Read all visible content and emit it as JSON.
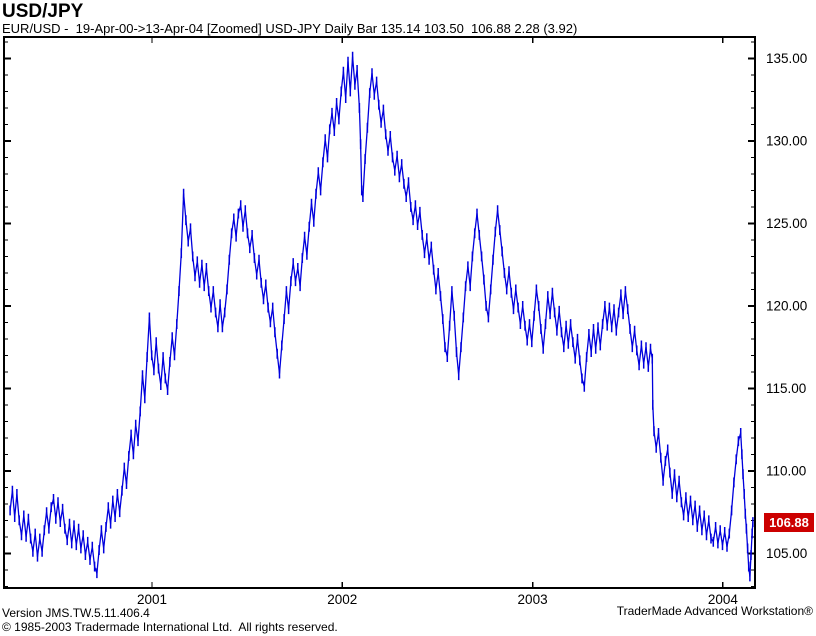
{
  "header": {
    "title": "USD/JPY",
    "subtitle": "EUR/USD -  19-Apr-00->13-Apr-04 [Zoomed] USD-JPY Daily Bar 135.14 103.50  106.88 2.28 (3.92)"
  },
  "price_tag": {
    "value": "106.88",
    "bg": "#CC0000",
    "fg": "#FFFFFF"
  },
  "footer": {
    "version_line": "Version JMS.TW.5.11.406.4",
    "copyright_line": "© 1985-2003 Tradermade International Ltd.  All rights reserved.",
    "brand": "TraderMade Advanced Workstation®"
  },
  "chart_data": {
    "type": "line",
    "title": "USD-JPY Daily Bar",
    "instrument": "USD/JPY",
    "date_range": "19-Apr-00->13-Apr-04",
    "period_high": 135.14,
    "period_low": 103.5,
    "last": 106.88,
    "change": 2.28,
    "change_pct": 3.92,
    "line_color": "#0000DD",
    "bar_half_range": 0.3,
    "grid": false,
    "x_range": [
      2000.222,
      2004.169
    ],
    "y_range": [
      102.9,
      136.3
    ],
    "x_ticks": [
      2001,
      2002,
      2003,
      2004
    ],
    "x_tick_labels": [
      "2001",
      "2002",
      "2003",
      "2004"
    ],
    "y_ticks": [
      105,
      110,
      115,
      120,
      125,
      130,
      135
    ],
    "y_tick_labels": [
      "105.00",
      "110.00",
      "115.00",
      "120.00",
      "125.00",
      "130.00",
      "135.00"
    ],
    "points": [
      [
        2000.254,
        107.6
      ],
      [
        2000.266,
        108.8
      ],
      [
        2000.278,
        107.2
      ],
      [
        2000.29,
        108.6
      ],
      [
        2000.302,
        107.0
      ],
      [
        2000.314,
        106.1
      ],
      [
        2000.326,
        107.3
      ],
      [
        2000.338,
        106.0
      ],
      [
        2000.35,
        107.1
      ],
      [
        2000.362,
        105.9
      ],
      [
        2000.374,
        105.1
      ],
      [
        2000.386,
        106.2
      ],
      [
        2000.398,
        104.8
      ],
      [
        2000.41,
        105.9
      ],
      [
        2000.422,
        105.1
      ],
      [
        2000.434,
        106.4
      ],
      [
        2000.446,
        107.5
      ],
      [
        2000.458,
        106.5
      ],
      [
        2000.47,
        107.8
      ],
      [
        2000.482,
        108.3
      ],
      [
        2000.494,
        107.1
      ],
      [
        2000.506,
        108.1
      ],
      [
        2000.518,
        106.9
      ],
      [
        2000.53,
        107.7
      ],
      [
        2000.542,
        106.5
      ],
      [
        2000.554,
        105.8
      ],
      [
        2000.566,
        106.8
      ],
      [
        2000.578,
        105.6
      ],
      [
        2000.59,
        106.7
      ],
      [
        2000.602,
        105.5
      ],
      [
        2000.614,
        106.5
      ],
      [
        2000.626,
        105.3
      ],
      [
        2000.638,
        106.1
      ],
      [
        2000.65,
        104.9
      ],
      [
        2000.662,
        105.7
      ],
      [
        2000.674,
        104.6
      ],
      [
        2000.686,
        105.4
      ],
      [
        2000.698,
        104.2
      ],
      [
        2000.71,
        103.8
      ],
      [
        2000.722,
        105.2
      ],
      [
        2000.734,
        106.4
      ],
      [
        2000.746,
        105.3
      ],
      [
        2000.758,
        106.6
      ],
      [
        2000.77,
        107.8
      ],
      [
        2000.782,
        106.8
      ],
      [
        2000.794,
        108.2
      ],
      [
        2000.806,
        107.2
      ],
      [
        2000.818,
        108.6
      ],
      [
        2000.83,
        107.5
      ],
      [
        2000.842,
        108.8
      ],
      [
        2000.854,
        110.2
      ],
      [
        2000.866,
        109.2
      ],
      [
        2000.878,
        110.9
      ],
      [
        2000.89,
        112.2
      ],
      [
        2000.902,
        111.0
      ],
      [
        2000.914,
        112.8
      ],
      [
        2000.926,
        111.8
      ],
      [
        2000.938,
        113.6
      ],
      [
        2000.95,
        115.8
      ],
      [
        2000.962,
        114.4
      ],
      [
        2000.974,
        116.9
      ],
      [
        2000.986,
        119.3
      ],
      [
        2000.998,
        117.0
      ],
      [
        2001.01,
        116.1
      ],
      [
        2001.022,
        117.8
      ],
      [
        2001.034,
        116.2
      ],
      [
        2001.046,
        115.2
      ],
      [
        2001.058,
        116.9
      ],
      [
        2001.07,
        115.6
      ],
      [
        2001.082,
        114.9
      ],
      [
        2001.094,
        116.6
      ],
      [
        2001.106,
        118.1
      ],
      [
        2001.118,
        117.0
      ],
      [
        2001.13,
        118.9
      ],
      [
        2001.142,
        120.9
      ],
      [
        2001.154,
        123.2
      ],
      [
        2001.166,
        126.8
      ],
      [
        2001.178,
        125.2
      ],
      [
        2001.19,
        123.9
      ],
      [
        2001.202,
        124.7
      ],
      [
        2001.214,
        123.0
      ],
      [
        2001.226,
        121.8
      ],
      [
        2001.238,
        122.7
      ],
      [
        2001.25,
        121.4
      ],
      [
        2001.262,
        122.5
      ],
      [
        2001.274,
        121.2
      ],
      [
        2001.286,
        122.3
      ],
      [
        2001.298,
        120.9
      ],
      [
        2001.31,
        119.9
      ],
      [
        2001.322,
        120.9
      ],
      [
        2001.334,
        119.6
      ],
      [
        2001.346,
        118.7
      ],
      [
        2001.358,
        120.1
      ],
      [
        2001.37,
        118.7
      ],
      [
        2001.382,
        119.6
      ],
      [
        2001.394,
        121.0
      ],
      [
        2001.406,
        122.8
      ],
      [
        2001.418,
        124.4
      ],
      [
        2001.43,
        125.3
      ],
      [
        2001.442,
        124.2
      ],
      [
        2001.454,
        125.6
      ],
      [
        2001.466,
        126.1
      ],
      [
        2001.478,
        124.8
      ],
      [
        2001.49,
        125.8
      ],
      [
        2001.502,
        124.4
      ],
      [
        2001.514,
        123.5
      ],
      [
        2001.526,
        124.3
      ],
      [
        2001.538,
        122.9
      ],
      [
        2001.55,
        121.9
      ],
      [
        2001.562,
        122.8
      ],
      [
        2001.574,
        121.4
      ],
      [
        2001.586,
        120.4
      ],
      [
        2001.598,
        121.3
      ],
      [
        2001.61,
        119.9
      ],
      [
        2001.622,
        119.0
      ],
      [
        2001.634,
        119.9
      ],
      [
        2001.646,
        118.4
      ],
      [
        2001.658,
        117.1
      ],
      [
        2001.67,
        115.9
      ],
      [
        2001.682,
        117.6
      ],
      [
        2001.694,
        119.2
      ],
      [
        2001.706,
        120.9
      ],
      [
        2001.718,
        119.8
      ],
      [
        2001.73,
        121.5
      ],
      [
        2001.742,
        122.6
      ],
      [
        2001.754,
        121.5
      ],
      [
        2001.766,
        122.3
      ],
      [
        2001.778,
        121.2
      ],
      [
        2001.79,
        122.9
      ],
      [
        2001.802,
        124.2
      ],
      [
        2001.814,
        123.1
      ],
      [
        2001.826,
        124.8
      ],
      [
        2001.838,
        126.2
      ],
      [
        2001.85,
        125.1
      ],
      [
        2001.862,
        126.8
      ],
      [
        2001.874,
        128.1
      ],
      [
        2001.886,
        127.0
      ],
      [
        2001.898,
        128.7
      ],
      [
        2001.91,
        130.1
      ],
      [
        2001.922,
        129.0
      ],
      [
        2001.934,
        130.7
      ],
      [
        2001.946,
        131.7
      ],
      [
        2001.958,
        130.6
      ],
      [
        2001.97,
        132.3
      ],
      [
        2001.982,
        131.3
      ],
      [
        2001.994,
        133.0
      ],
      [
        2002.006,
        134.2
      ],
      [
        2002.018,
        132.6
      ],
      [
        2002.03,
        134.8
      ],
      [
        2002.042,
        133.0
      ],
      [
        2002.054,
        135.1
      ],
      [
        2002.066,
        133.4
      ],
      [
        2002.078,
        134.3
      ],
      [
        2002.09,
        132.0
      ],
      [
        2002.096,
        129.8
      ],
      [
        2002.102,
        127.0
      ],
      [
        2002.108,
        126.6
      ],
      [
        2002.12,
        128.9
      ],
      [
        2002.132,
        130.8
      ],
      [
        2002.144,
        132.9
      ],
      [
        2002.156,
        134.1
      ],
      [
        2002.168,
        132.8
      ],
      [
        2002.18,
        133.6
      ],
      [
        2002.192,
        132.2
      ],
      [
        2002.204,
        131.1
      ],
      [
        2002.216,
        131.9
      ],
      [
        2002.228,
        130.4
      ],
      [
        2002.24,
        129.4
      ],
      [
        2002.252,
        130.3
      ],
      [
        2002.264,
        129.0
      ],
      [
        2002.276,
        128.2
      ],
      [
        2002.288,
        129.1
      ],
      [
        2002.3,
        127.8
      ],
      [
        2002.312,
        128.6
      ],
      [
        2002.324,
        127.4
      ],
      [
        2002.336,
        126.6
      ],
      [
        2002.348,
        127.5
      ],
      [
        2002.36,
        126.0
      ],
      [
        2002.372,
        125.2
      ],
      [
        2002.384,
        126.1
      ],
      [
        2002.396,
        124.9
      ],
      [
        2002.408,
        125.7
      ],
      [
        2002.42,
        124.3
      ],
      [
        2002.432,
        123.2
      ],
      [
        2002.444,
        124.1
      ],
      [
        2002.456,
        122.8
      ],
      [
        2002.468,
        123.6
      ],
      [
        2002.48,
        122.2
      ],
      [
        2002.492,
        121.0
      ],
      [
        2002.504,
        122.0
      ],
      [
        2002.516,
        120.6
      ],
      [
        2002.528,
        119.2
      ],
      [
        2002.54,
        117.5
      ],
      [
        2002.552,
        116.9
      ],
      [
        2002.564,
        118.8
      ],
      [
        2002.576,
        120.9
      ],
      [
        2002.588,
        119.4
      ],
      [
        2002.6,
        117.2
      ],
      [
        2002.612,
        115.8
      ],
      [
        2002.624,
        117.5
      ],
      [
        2002.636,
        119.3
      ],
      [
        2002.648,
        121.2
      ],
      [
        2002.66,
        122.4
      ],
      [
        2002.672,
        121.2
      ],
      [
        2002.684,
        123.0
      ],
      [
        2002.696,
        124.4
      ],
      [
        2002.708,
        125.6
      ],
      [
        2002.72,
        124.3
      ],
      [
        2002.732,
        123.0
      ],
      [
        2002.744,
        121.6
      ],
      [
        2002.756,
        120.0
      ],
      [
        2002.768,
        119.3
      ],
      [
        2002.78,
        121.0
      ],
      [
        2002.792,
        122.8
      ],
      [
        2002.804,
        124.5
      ],
      [
        2002.816,
        125.8
      ],
      [
        2002.828,
        124.6
      ],
      [
        2002.84,
        123.3
      ],
      [
        2002.852,
        122.0
      ],
      [
        2002.864,
        121.0
      ],
      [
        2002.876,
        122.1
      ],
      [
        2002.888,
        120.8
      ],
      [
        2002.9,
        119.8
      ],
      [
        2002.912,
        121.0
      ],
      [
        2002.924,
        119.9
      ],
      [
        2002.936,
        118.9
      ],
      [
        2002.948,
        120.0
      ],
      [
        2002.96,
        118.8
      ],
      [
        2002.972,
        117.9
      ],
      [
        2002.984,
        118.9
      ],
      [
        2002.996,
        117.8
      ],
      [
        2003.008,
        119.4
      ],
      [
        2003.02,
        121.0
      ],
      [
        2003.032,
        120.0
      ],
      [
        2003.044,
        118.6
      ],
      [
        2003.056,
        117.4
      ],
      [
        2003.068,
        118.9
      ],
      [
        2003.08,
        120.6
      ],
      [
        2003.092,
        119.5
      ],
      [
        2003.104,
        120.8
      ],
      [
        2003.116,
        119.6
      ],
      [
        2003.128,
        118.5
      ],
      [
        2003.14,
        119.7
      ],
      [
        2003.152,
        118.4
      ],
      [
        2003.164,
        117.5
      ],
      [
        2003.176,
        118.8
      ],
      [
        2003.188,
        117.7
      ],
      [
        2003.2,
        118.9
      ],
      [
        2003.212,
        117.8
      ],
      [
        2003.224,
        116.8
      ],
      [
        2003.236,
        118.0
      ],
      [
        2003.248,
        116.7
      ],
      [
        2003.26,
        115.6
      ],
      [
        2003.272,
        115.1
      ],
      [
        2003.284,
        116.9
      ],
      [
        2003.296,
        118.3
      ],
      [
        2003.308,
        117.2
      ],
      [
        2003.32,
        118.6
      ],
      [
        2003.332,
        117.4
      ],
      [
        2003.344,
        118.7
      ],
      [
        2003.356,
        117.6
      ],
      [
        2003.368,
        118.9
      ],
      [
        2003.38,
        120.0
      ],
      [
        2003.392,
        118.8
      ],
      [
        2003.404,
        119.9
      ],
      [
        2003.416,
        118.7
      ],
      [
        2003.428,
        119.8
      ],
      [
        2003.44,
        118.5
      ],
      [
        2003.452,
        119.6
      ],
      [
        2003.464,
        120.7
      ],
      [
        2003.476,
        119.5
      ],
      [
        2003.488,
        120.9
      ],
      [
        2003.5,
        119.8
      ],
      [
        2003.512,
        118.6
      ],
      [
        2003.524,
        117.5
      ],
      [
        2003.536,
        118.5
      ],
      [
        2003.548,
        117.3
      ],
      [
        2003.56,
        116.4
      ],
      [
        2003.572,
        117.6
      ],
      [
        2003.584,
        116.5
      ],
      [
        2003.596,
        117.5
      ],
      [
        2003.608,
        116.3
      ],
      [
        2003.62,
        117.4
      ],
      [
        2003.629,
        116.8
      ],
      [
        2003.632,
        114.0
      ],
      [
        2003.638,
        112.4
      ],
      [
        2003.65,
        111.4
      ],
      [
        2003.662,
        112.3
      ],
      [
        2003.674,
        110.8
      ],
      [
        2003.686,
        109.4
      ],
      [
        2003.698,
        110.6
      ],
      [
        2003.71,
        111.3
      ],
      [
        2003.722,
        109.9
      ],
      [
        2003.734,
        108.6
      ],
      [
        2003.746,
        109.8
      ],
      [
        2003.758,
        108.4
      ],
      [
        2003.77,
        109.4
      ],
      [
        2003.782,
        108.1
      ],
      [
        2003.794,
        107.3
      ],
      [
        2003.806,
        108.4
      ],
      [
        2003.818,
        107.2
      ],
      [
        2003.83,
        108.2
      ],
      [
        2003.842,
        107.0
      ],
      [
        2003.854,
        107.9
      ],
      [
        2003.866,
        106.6
      ],
      [
        2003.878,
        107.6
      ],
      [
        2003.89,
        106.4
      ],
      [
        2003.902,
        107.3
      ],
      [
        2003.914,
        106.1
      ],
      [
        2003.926,
        107.0
      ],
      [
        2003.938,
        105.9
      ],
      [
        2003.95,
        105.7
      ],
      [
        2003.962,
        106.6
      ],
      [
        2003.974,
        105.6
      ],
      [
        2003.986,
        106.4
      ],
      [
        2003.998,
        105.5
      ],
      [
        2004.01,
        106.3
      ],
      [
        2004.022,
        105.4
      ],
      [
        2004.034,
        106.2
      ],
      [
        2004.046,
        107.6
      ],
      [
        2004.058,
        109.3
      ],
      [
        2004.07,
        110.7
      ],
      [
        2004.082,
        111.8
      ],
      [
        2004.094,
        112.3
      ],
      [
        2004.1,
        111.0
      ],
      [
        2004.106,
        109.8
      ],
      [
        2004.112,
        108.6
      ],
      [
        2004.118,
        107.4
      ],
      [
        2004.124,
        106.5
      ],
      [
        2004.13,
        105.3
      ],
      [
        2004.136,
        104.2
      ],
      [
        2004.142,
        103.6
      ],
      [
        2004.148,
        104.9
      ],
      [
        2004.154,
        106.2
      ],
      [
        2004.158,
        106.9
      ]
    ]
  }
}
